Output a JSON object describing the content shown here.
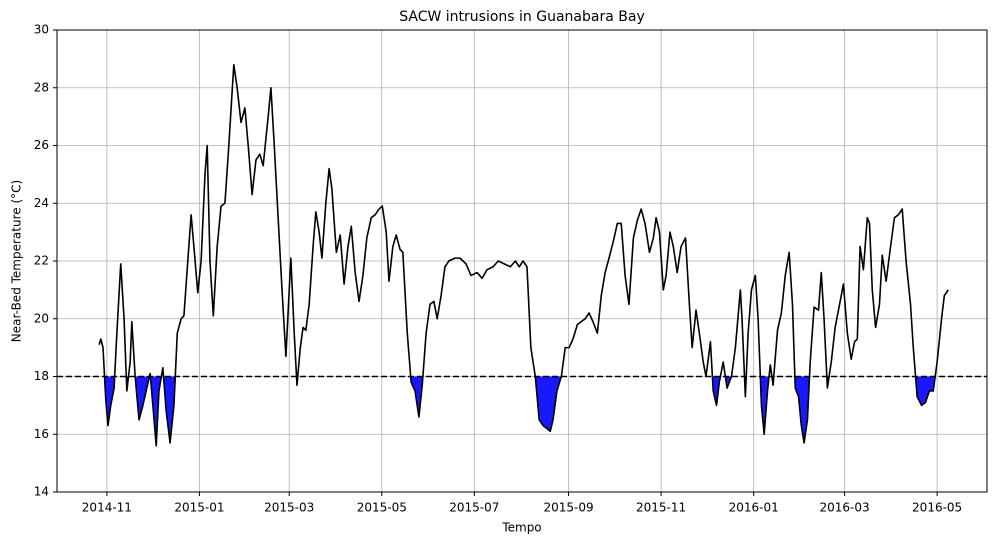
{
  "chart_data": {
    "type": "line",
    "title": "SACW intrusions in Guanabara Bay",
    "x_label": "Tempo",
    "y_label": "Near-Bed Temperature (°C)",
    "xlim": [
      2014.743,
      2016.421
    ],
    "ylim": [
      14,
      30
    ],
    "xticks": [
      {
        "value": 2014.833,
        "label": "2014-11"
      },
      {
        "value": 2015.0,
        "label": "2015-01"
      },
      {
        "value": 2015.162,
        "label": "2015-03"
      },
      {
        "value": 2015.329,
        "label": "2015-05"
      },
      {
        "value": 2015.496,
        "label": "2015-07"
      },
      {
        "value": 2015.666,
        "label": "2015-09"
      },
      {
        "value": 2015.833,
        "label": "2015-11"
      },
      {
        "value": 2016.0,
        "label": "2016-01"
      },
      {
        "value": 2016.164,
        "label": "2016-03"
      },
      {
        "value": 2016.331,
        "label": "2016-05"
      }
    ],
    "yticks": [
      14,
      16,
      18,
      20,
      22,
      24,
      26,
      28,
      30
    ],
    "grid": true,
    "threshold": 18,
    "fill_color": "#1919ff",
    "series": [
      {
        "color": "#000000",
        "x": [
          2014.819,
          2014.822,
          2014.826,
          2014.831,
          2014.835,
          2014.84,
          2014.846,
          2014.851,
          2014.858,
          2014.864,
          2014.869,
          2014.875,
          2014.878,
          2014.884,
          2014.891,
          2014.898,
          2014.905,
          2014.911,
          2014.916,
          2014.922,
          2014.927,
          2014.934,
          2014.94,
          2014.947,
          2014.954,
          2014.96,
          2014.967,
          2014.972,
          2014.979,
          2014.985,
          2014.99,
          2014.997,
          2015.003,
          2015.01,
          2015.014,
          2015.019,
          2015.025,
          2015.032,
          2015.039,
          2015.046,
          2015.053,
          2015.062,
          2015.068,
          2015.075,
          2015.082,
          2015.088,
          2015.095,
          2015.102,
          2015.109,
          2015.115,
          2015.124,
          2015.129,
          2015.135,
          2015.142,
          2015.149,
          2015.156,
          2015.162,
          2015.165,
          2015.171,
          2015.176,
          2015.182,
          2015.187,
          2015.192,
          2015.198,
          2015.205,
          2015.21,
          2015.216,
          2015.221,
          2015.228,
          2015.234,
          2015.239,
          2015.247,
          2015.254,
          2015.261,
          2015.268,
          2015.274,
          2015.281,
          2015.288,
          2015.295,
          2015.302,
          2015.31,
          2015.317,
          2015.324,
          2015.33,
          2015.337,
          2015.342,
          2015.349,
          2015.355,
          2015.362,
          2015.367,
          2015.375,
          2015.382,
          2015.389,
          2015.396,
          2015.402,
          2015.409,
          2015.416,
          2015.423,
          2015.429,
          2015.436,
          2015.443,
          2015.45,
          2015.461,
          2015.47,
          2015.481,
          2015.49,
          2015.501,
          2015.51,
          2015.519,
          2015.53,
          2015.539,
          2015.55,
          2015.561,
          2015.57,
          2015.577,
          2015.584,
          2015.591,
          2015.598,
          2015.606,
          2015.613,
          2015.62,
          2015.627,
          2015.633,
          2015.638,
          2015.645,
          2015.653,
          2015.66,
          2015.667,
          2015.674,
          2015.682,
          2015.689,
          2015.696,
          2015.703,
          2015.71,
          2015.718,
          2015.725,
          2015.732,
          2015.739,
          2015.747,
          2015.754,
          2015.761,
          2015.768,
          2015.775,
          2015.783,
          2015.79,
          2015.797,
          2015.804,
          2015.812,
          2015.819,
          2015.824,
          2015.83,
          2015.837,
          2015.842,
          2015.849,
          2015.855,
          2015.862,
          2015.869,
          2015.877,
          2015.884,
          2015.889,
          2015.896,
          2015.902,
          2015.909,
          2015.914,
          2015.922,
          2015.927,
          2015.933,
          2015.938,
          2015.945,
          2015.952,
          2015.96,
          2015.967,
          2015.976,
          2015.979,
          2015.985,
          2015.99,
          2015.996,
          2016.003,
          2016.008,
          2016.014,
          2016.019,
          2016.025,
          2016.03,
          2016.035,
          2016.043,
          2016.05,
          2016.057,
          2016.064,
          2016.07,
          2016.075,
          2016.081,
          2016.086,
          2016.091,
          2016.097,
          2016.102,
          2016.109,
          2016.117,
          2016.122,
          2016.127,
          2016.133,
          2016.14,
          2016.147,
          2016.155,
          2016.162,
          2016.169,
          2016.176,
          2016.182,
          2016.187,
          2016.192,
          2016.198,
          2016.205,
          2016.209,
          2016.214,
          2016.22,
          2016.227,
          2016.232,
          2016.239,
          2016.247,
          2016.254,
          2016.261,
          2016.268,
          2016.275,
          2016.283,
          2016.288,
          2016.295,
          2016.303,
          2016.31,
          2016.317,
          2016.324,
          2016.331,
          2016.339,
          2016.344,
          2016.351
        ],
        "values": [
          19.1,
          19.3,
          19.0,
          17.2,
          16.3,
          17.0,
          17.6,
          19.5,
          21.9,
          20.0,
          17.5,
          18.5,
          19.9,
          18.0,
          16.5,
          17.0,
          17.6,
          18.1,
          17.0,
          15.6,
          17.5,
          18.3,
          16.8,
          15.7,
          17.0,
          19.5,
          20.0,
          20.1,
          22.0,
          23.6,
          22.5,
          20.9,
          22.0,
          25.0,
          26.0,
          22.0,
          20.1,
          22.5,
          23.9,
          24.0,
          26.0,
          28.8,
          28.0,
          26.8,
          27.3,
          26.0,
          24.3,
          25.5,
          25.7,
          25.3,
          27.0,
          28.0,
          26.0,
          23.5,
          21.0,
          18.7,
          21.0,
          22.1,
          19.5,
          17.7,
          19.0,
          19.7,
          19.6,
          20.5,
          22.5,
          23.7,
          23.0,
          22.1,
          24.0,
          25.2,
          24.5,
          22.3,
          22.9,
          21.2,
          22.5,
          23.2,
          21.6,
          20.6,
          21.5,
          22.8,
          23.5,
          23.6,
          23.8,
          23.9,
          23.0,
          21.3,
          22.5,
          22.9,
          22.4,
          22.3,
          19.5,
          17.8,
          17.5,
          16.6,
          17.7,
          19.5,
          20.5,
          20.6,
          20.0,
          20.8,
          21.8,
          22.0,
          22.1,
          22.1,
          21.9,
          21.5,
          21.6,
          21.4,
          21.7,
          21.8,
          22.0,
          21.9,
          21.8,
          22.0,
          21.8,
          22.0,
          21.8,
          19.0,
          18.0,
          16.5,
          16.3,
          16.2,
          16.1,
          16.5,
          17.5,
          18.0,
          19.0,
          19.0,
          19.3,
          19.8,
          19.9,
          20.0,
          20.2,
          19.9,
          19.5,
          20.8,
          21.6,
          22.1,
          22.7,
          23.3,
          23.3,
          21.5,
          20.5,
          22.8,
          23.4,
          23.8,
          23.3,
          22.3,
          22.8,
          23.5,
          23.0,
          21.0,
          21.5,
          23.0,
          22.5,
          21.6,
          22.5,
          22.8,
          20.5,
          19.0,
          20.3,
          19.5,
          18.5,
          18.0,
          19.2,
          17.5,
          17.0,
          17.8,
          18.5,
          17.6,
          18.0,
          19.0,
          21.0,
          20.0,
          17.3,
          19.5,
          21.0,
          21.5,
          20.0,
          17.0,
          16.0,
          17.5,
          18.4,
          17.7,
          19.6,
          20.2,
          21.5,
          22.3,
          20.5,
          17.6,
          17.3,
          16.3,
          15.7,
          16.5,
          18.5,
          20.4,
          20.3,
          21.6,
          20.0,
          17.6,
          18.5,
          19.7,
          20.5,
          21.2,
          19.5,
          18.6,
          19.2,
          19.3,
          22.5,
          21.7,
          23.5,
          23.3,
          21.0,
          19.7,
          20.5,
          22.2,
          21.3,
          22.5,
          23.5,
          23.6,
          23.8,
          22.0,
          20.5,
          19.0,
          17.3,
          17.0,
          17.1,
          17.5,
          17.5,
          18.5,
          20.0,
          20.8,
          21.0
        ]
      }
    ]
  }
}
